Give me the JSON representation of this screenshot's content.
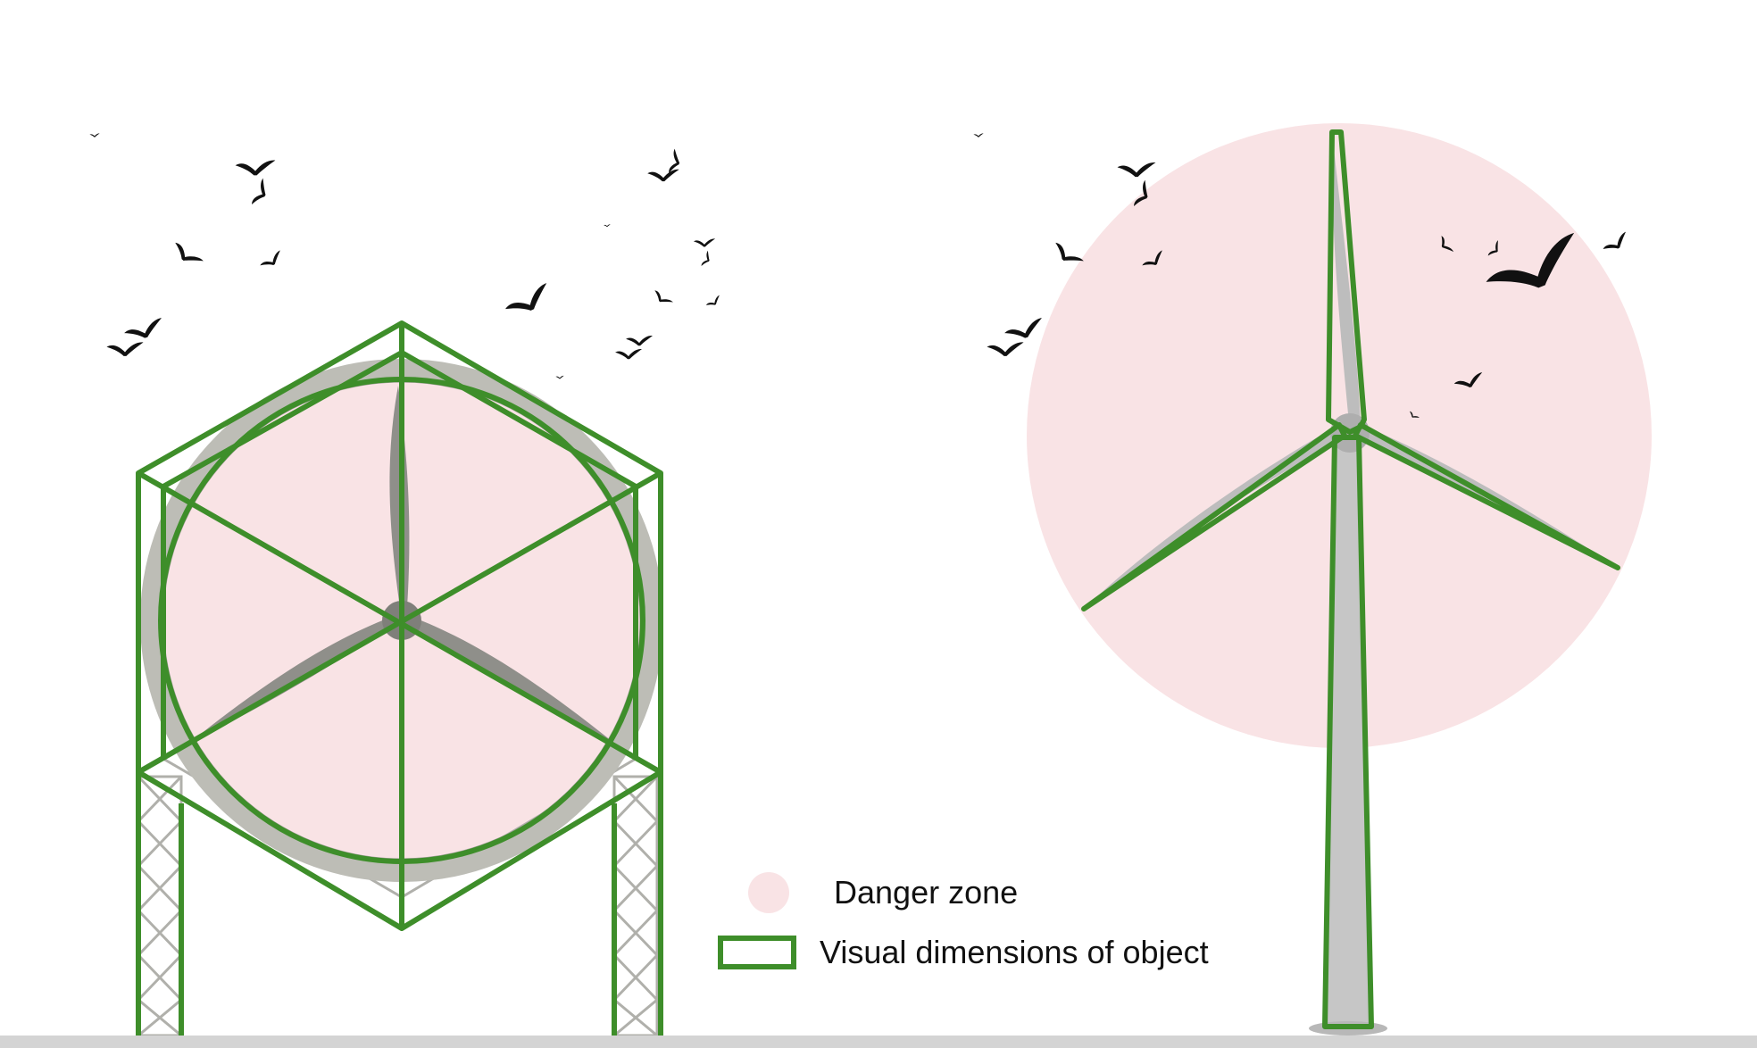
{
  "legend": {
    "danger_zone_label": "Danger zone",
    "visual_dimensions_label": "Visual dimensions of object"
  },
  "colors": {
    "danger_zone": "#f9e3e5",
    "outline": "#3e8e2a",
    "blade": "#8f8f8a",
    "tower": "#c6c6c6",
    "truss": "#b0b0ab",
    "bird": "#111111",
    "ground": "#d4d4d4"
  },
  "icons": {
    "bird": "bird-silhouette-icon",
    "danger_zone_swatch": "pink-circle-icon",
    "outline_swatch": "green-rectangle-outline-icon"
  }
}
